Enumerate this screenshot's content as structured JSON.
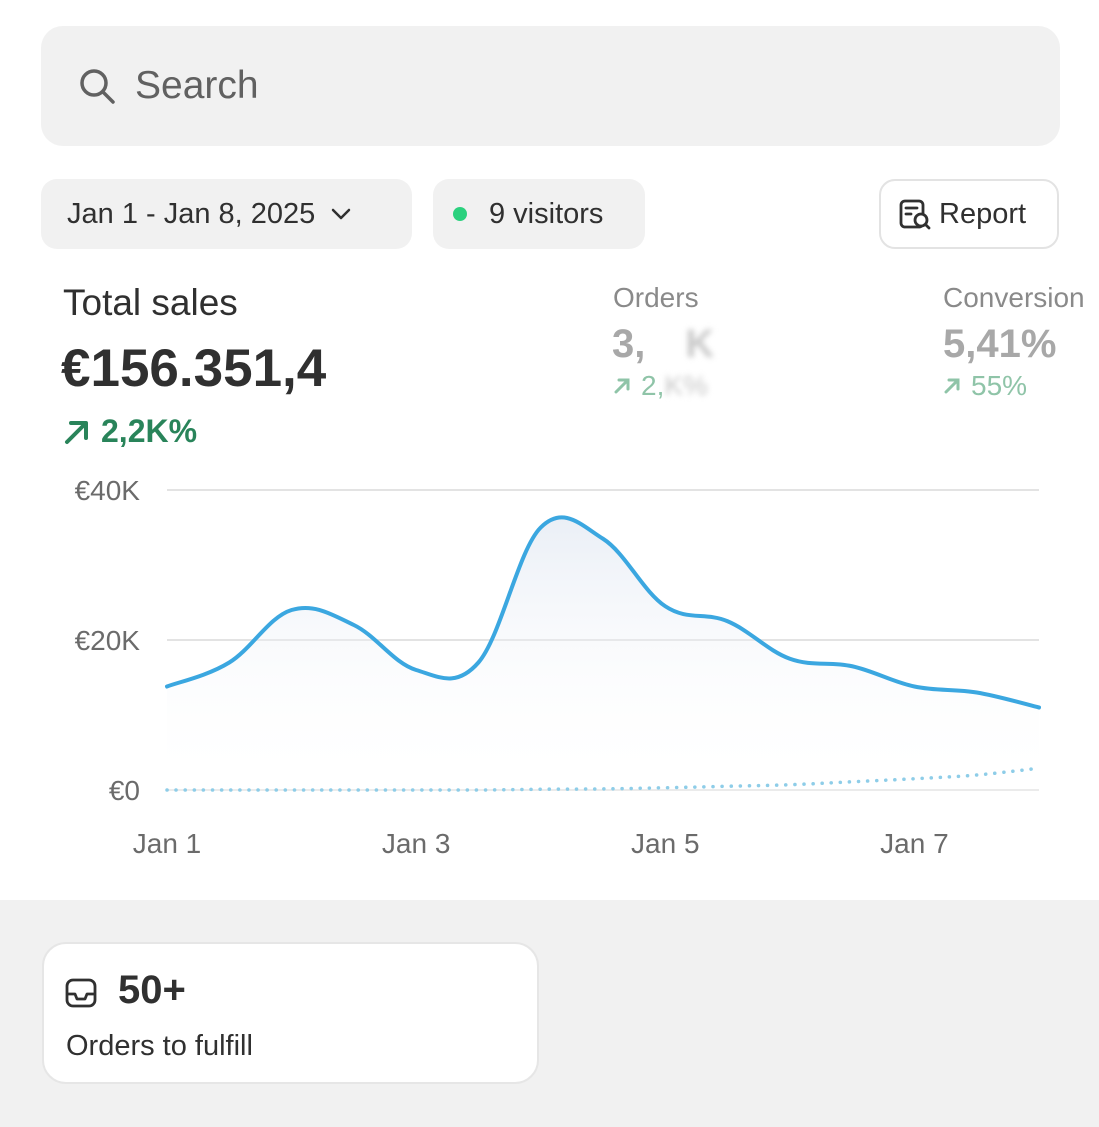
{
  "search": {
    "placeholder": "Search",
    "icon": "search-icon"
  },
  "filters": {
    "date_range": "Jan 1 - Jan 8, 2025",
    "visitors": "9 visitors",
    "visitor_dot_color": "#2bd17e",
    "report_label": "Report"
  },
  "metrics": {
    "total_sales": {
      "label": "Total sales",
      "value": "€156.351,4",
      "change": "2,2K%",
      "color": "#29845a"
    },
    "orders": {
      "label": "Orders",
      "value": "3,",
      "value_blurred": "K",
      "change": "2,",
      "change_blurred": "K%"
    },
    "conversion": {
      "label": "Conversion",
      "value": "5,41%",
      "change": "55%"
    }
  },
  "chart_data": {
    "type": "line",
    "x": [
      "Jan 1",
      "Jan 1.5",
      "Jan 2",
      "Jan 2.5",
      "Jan 3",
      "Jan 3.5",
      "Jan 4",
      "Jan 4.5",
      "Jan 5",
      "Jan 5.5",
      "Jan 6",
      "Jan 6.5",
      "Jan 7",
      "Jan 7.5",
      "Jan 8"
    ],
    "series": [
      {
        "style": "solid",
        "color": "#3ba7e0",
        "values": [
          13800,
          17000,
          24000,
          22000,
          16000,
          17000,
          35000,
          33500,
          24500,
          22500,
          17500,
          16500,
          13800,
          13000,
          11000
        ]
      },
      {
        "style": "dotted",
        "color": "#8ecde8",
        "values": [
          0,
          0,
          0,
          0,
          0,
          0,
          100,
          150,
          300,
          500,
          700,
          1100,
          1500,
          2000,
          2900
        ]
      }
    ],
    "y_ticks": [
      "€40K",
      "€20K",
      "€0"
    ],
    "x_ticks": [
      "Jan 1",
      "Jan 3",
      "Jan 5",
      "Jan 7"
    ],
    "ylim": [
      0,
      40000
    ],
    "grid": true
  },
  "card": {
    "count": "50+",
    "label": "Orders to fulfill",
    "icon": "inbox-icon"
  }
}
